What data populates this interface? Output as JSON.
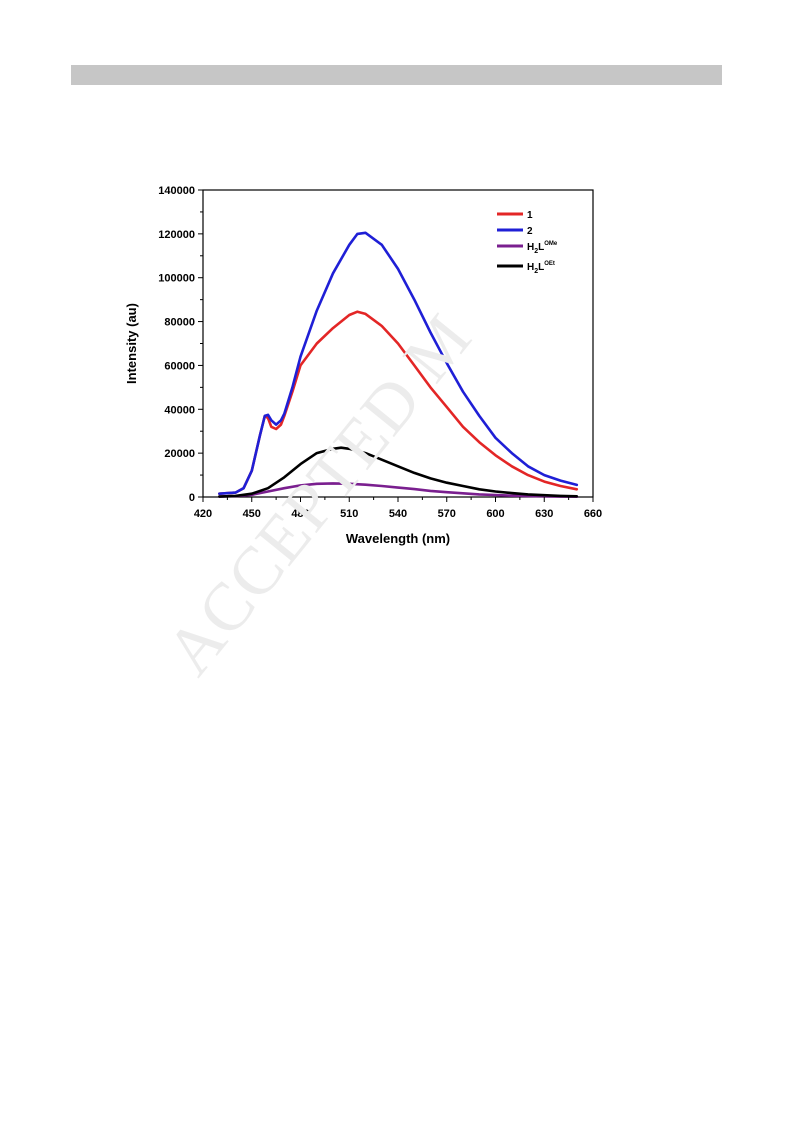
{
  "page": {
    "watermark": "ACCEPTED M"
  },
  "chart_data": {
    "type": "line",
    "xlabel": "Wavelength (nm)",
    "ylabel": "Intensity (au)",
    "xlim": [
      420,
      660
    ],
    "ylim": [
      0,
      140000
    ],
    "xticks": [
      "420",
      "450",
      "480",
      "510",
      "540",
      "570",
      "600",
      "630",
      "660"
    ],
    "yticks": [
      "0",
      "20000",
      "40000",
      "60000",
      "80000",
      "100000",
      "120000",
      "140000"
    ],
    "grid": false,
    "legend_position": "top-right",
    "series": [
      {
        "name": "1",
        "label_main": "1",
        "label_sub": "",
        "label_sup": "",
        "color": "#e32626",
        "x": [
          430,
          440,
          445,
          450,
          455,
          458,
          460,
          462,
          465,
          468,
          470,
          475,
          480,
          490,
          500,
          510,
          515,
          520,
          530,
          540,
          550,
          560,
          570,
          580,
          590,
          600,
          610,
          620,
          630,
          640,
          650
        ],
        "y": [
          1500,
          2000,
          4000,
          12000,
          28000,
          37000,
          36000,
          32000,
          31000,
          33000,
          37000,
          48000,
          60000,
          70000,
          77000,
          83000,
          84500,
          83500,
          78000,
          70000,
          60000,
          50000,
          41000,
          32000,
          25000,
          19000,
          14000,
          10000,
          7000,
          5000,
          3500
        ]
      },
      {
        "name": "2",
        "label_main": "2",
        "label_sub": "",
        "label_sup": "",
        "color": "#1f1fd6",
        "x": [
          430,
          440,
          445,
          450,
          455,
          458,
          460,
          462,
          465,
          468,
          470,
          475,
          480,
          490,
          500,
          510,
          515,
          520,
          530,
          540,
          550,
          560,
          570,
          580,
          590,
          600,
          610,
          620,
          630,
          640,
          650
        ],
        "y": [
          1500,
          2000,
          4000,
          12000,
          28000,
          37000,
          37500,
          35000,
          33000,
          35000,
          38000,
          50000,
          64000,
          85000,
          102000,
          115000,
          120000,
          120500,
          115000,
          104000,
          90000,
          75000,
          61000,
          48000,
          37000,
          27000,
          20000,
          14000,
          10000,
          7500,
          5500
        ]
      },
      {
        "name": "H2LOMe",
        "label_main": "H",
        "label_sub": "2",
        "label_main2": "L",
        "label_sup": "OMe",
        "color": "#7a1f8f",
        "x": [
          430,
          440,
          450,
          460,
          470,
          480,
          490,
          500,
          510,
          520,
          530,
          540,
          550,
          560,
          570,
          580,
          590,
          600,
          610,
          620,
          630,
          640,
          650
        ],
        "y": [
          200,
          400,
          1000,
          2500,
          4000,
          5300,
          6000,
          6200,
          6000,
          5600,
          5000,
          4300,
          3600,
          2800,
          2200,
          1700,
          1200,
          900,
          600,
          400,
          300,
          200,
          150
        ]
      },
      {
        "name": "H2LOEt",
        "label_main": "H",
        "label_sub": "2",
        "label_main2": "L",
        "label_sup": "OEt",
        "color": "#000000",
        "x": [
          430,
          440,
          450,
          460,
          470,
          480,
          490,
          500,
          505,
          510,
          520,
          530,
          540,
          550,
          560,
          570,
          580,
          590,
          600,
          610,
          620,
          630,
          640,
          650
        ],
        "y": [
          200,
          500,
          1500,
          4000,
          9000,
          15000,
          20000,
          22000,
          22500,
          22000,
          20000,
          17000,
          14000,
          11000,
          8500,
          6500,
          5000,
          3500,
          2500,
          1800,
          1200,
          800,
          500,
          300
        ]
      }
    ]
  }
}
